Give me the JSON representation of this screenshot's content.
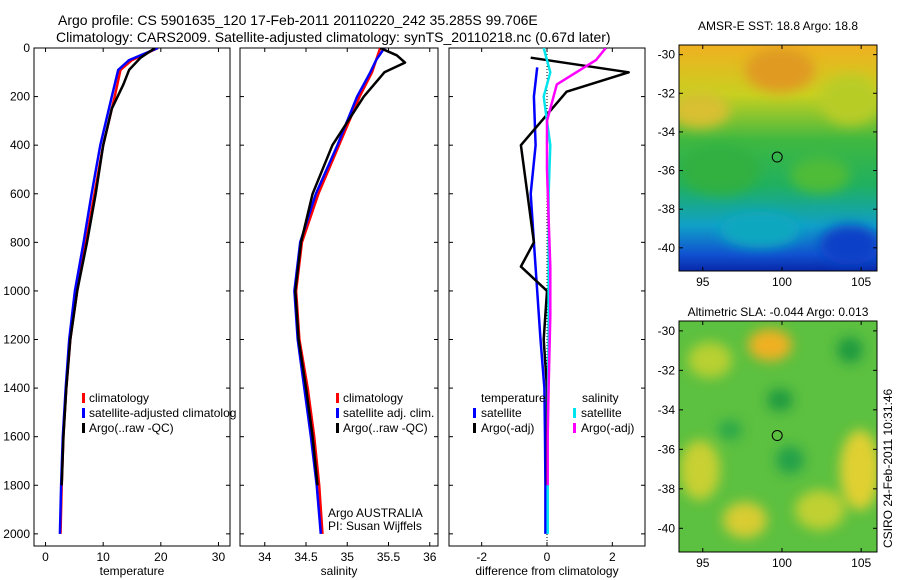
{
  "header": {
    "line1": "Argo profile: CS 5901635_120 17-Feb-2011 20110220_242 35.285S 99.706E",
    "line2": "Climatology: CARS2009. Satellite-adjusted climatology: synTS_20110218.nc (0.67d later)"
  },
  "colors": {
    "climatology": "#ff0000",
    "satellite": "#0000ff",
    "argo": "#000000",
    "sat_sal": "#00e5ee",
    "argo_sal": "#ff00ff"
  },
  "chart_data": [
    {
      "type": "line",
      "id": "temperature",
      "xlabel": "temperature",
      "ylabel": "",
      "xlim": [
        -2,
        32
      ],
      "ylim": [
        2050,
        0
      ],
      "xticks": [
        0,
        10,
        20,
        30
      ],
      "yticks": [
        0,
        200,
        400,
        600,
        800,
        1000,
        1200,
        1400,
        1600,
        1800,
        2000
      ],
      "legend": [
        "climatology",
        "satellite-adjusted climatolog",
        "Argo(..raw -QC)"
      ],
      "series": [
        {
          "name": "climatology",
          "color": "#ff0000",
          "points": [
            [
              19.5,
              0
            ],
            [
              15,
              50
            ],
            [
              13,
              90
            ],
            [
              12,
              200
            ],
            [
              10,
              400
            ],
            [
              8.5,
              600
            ],
            [
              7,
              800
            ],
            [
              5.5,
              1000
            ],
            [
              4.3,
              1200
            ],
            [
              3.6,
              1400
            ],
            [
              3.1,
              1600
            ],
            [
              2.8,
              1800
            ],
            [
              2.6,
              2000
            ]
          ]
        },
        {
          "name": "satellite-adjusted climatolog",
          "color": "#0000ff",
          "points": [
            [
              19.5,
              0
            ],
            [
              14.5,
              50
            ],
            [
              12.6,
              90
            ],
            [
              11.5,
              200
            ],
            [
              9.5,
              400
            ],
            [
              8,
              600
            ],
            [
              6.6,
              800
            ],
            [
              5.1,
              1000
            ],
            [
              4.1,
              1200
            ],
            [
              3.5,
              1400
            ],
            [
              3,
              1600
            ],
            [
              2.7,
              1800
            ],
            [
              2.5,
              2000
            ]
          ]
        },
        {
          "name": "Argo(..raw -QC)",
          "color": "#000000",
          "points": [
            [
              19,
              0
            ],
            [
              16.5,
              40
            ],
            [
              14.5,
              90
            ],
            [
              13.5,
              150
            ],
            [
              11.5,
              250
            ],
            [
              10,
              400
            ],
            [
              8.7,
              600
            ],
            [
              7.2,
              800
            ],
            [
              5.5,
              1000
            ],
            [
              4.3,
              1200
            ],
            [
              3.6,
              1400
            ],
            [
              3.1,
              1600
            ],
            [
              2.8,
              1800
            ]
          ]
        }
      ]
    },
    {
      "type": "line",
      "id": "salinity",
      "xlabel": "salinity",
      "ylabel": "",
      "xlim": [
        33.7,
        36.1
      ],
      "ylim": [
        2050,
        0
      ],
      "xticks": [
        34,
        34.5,
        35,
        35.5,
        36
      ],
      "yticks": [
        0,
        200,
        400,
        600,
        800,
        1000,
        1200,
        1400,
        1600,
        1800,
        2000
      ],
      "legend": [
        "climatology",
        "satellite adj. clim.",
        "Argo(..raw -QC)"
      ],
      "annotation": [
        "Argo AUSTRALIA",
        "PI: Susan Wijffels"
      ],
      "series": [
        {
          "name": "climatology",
          "color": "#ff0000",
          "points": [
            [
              35.4,
              0
            ],
            [
              35.35,
              50
            ],
            [
              35.3,
              100
            ],
            [
              35.15,
              200
            ],
            [
              34.9,
              400
            ],
            [
              34.65,
              600
            ],
            [
              34.45,
              800
            ],
            [
              34.38,
              1000
            ],
            [
              34.42,
              1200
            ],
            [
              34.52,
              1400
            ],
            [
              34.6,
              1600
            ],
            [
              34.66,
              1800
            ],
            [
              34.7,
              2000
            ]
          ]
        },
        {
          "name": "satellite adj. clim.",
          "color": "#0000ff",
          "points": [
            [
              35.45,
              0
            ],
            [
              35.35,
              50
            ],
            [
              35.28,
              100
            ],
            [
              35.12,
              200
            ],
            [
              34.88,
              400
            ],
            [
              34.62,
              600
            ],
            [
              34.43,
              800
            ],
            [
              34.36,
              1000
            ],
            [
              34.4,
              1200
            ],
            [
              34.48,
              1400
            ],
            [
              34.56,
              1600
            ],
            [
              34.63,
              1800
            ],
            [
              34.68,
              2000
            ]
          ]
        },
        {
          "name": "Argo(..raw -QC)",
          "color": "#000000",
          "points": [
            [
              35.4,
              0
            ],
            [
              35.6,
              30
            ],
            [
              35.7,
              60
            ],
            [
              35.45,
              100
            ],
            [
              35.2,
              200
            ],
            [
              34.82,
              400
            ],
            [
              34.58,
              600
            ],
            [
              34.44,
              800
            ],
            [
              34.37,
              1000
            ],
            [
              34.41,
              1200
            ],
            [
              34.5,
              1400
            ],
            [
              34.58,
              1600
            ],
            [
              34.64,
              1800
            ]
          ]
        }
      ]
    },
    {
      "type": "line",
      "id": "difference",
      "xlabel": "difference from climatology",
      "ylabel": "",
      "xlim": [
        -3,
        3
      ],
      "ylim": [
        2050,
        0
      ],
      "xticks": [
        -2,
        0,
        2
      ],
      "yticks": [
        0,
        200,
        400,
        600,
        800,
        1000,
        1200,
        1400,
        1600,
        1800,
        2000
      ],
      "legend_titles": [
        "temperature",
        "salinity"
      ],
      "legend": [
        "satellite",
        "Argo(-adj)",
        "satellite",
        "Argo(-adj)"
      ],
      "series": [
        {
          "name": "temperature satellite",
          "color": "#0000ff",
          "points": [
            [
              -0.3,
              80
            ],
            [
              -0.4,
              200
            ],
            [
              -0.35,
              400
            ],
            [
              -0.5,
              600
            ],
            [
              -0.4,
              800
            ],
            [
              -0.3,
              1000
            ],
            [
              -0.2,
              1200
            ],
            [
              -0.08,
              1400
            ],
            [
              -0.06,
              1600
            ],
            [
              -0.05,
              1800
            ],
            [
              -0.05,
              2000
            ]
          ]
        },
        {
          "name": "temperature Argo(-adj)",
          "color": "#000000",
          "points": [
            [
              -0.5,
              40
            ],
            [
              2.5,
              100
            ],
            [
              0.6,
              180
            ],
            [
              -0.8,
              400
            ],
            [
              -0.6,
              600
            ],
            [
              -0.4,
              800
            ],
            [
              -0.8,
              900
            ],
            [
              0.0,
              1000
            ],
            [
              -0.1,
              1200
            ],
            [
              0.0,
              1400
            ],
            [
              0.0,
              1600
            ],
            [
              0.0,
              1800
            ]
          ]
        },
        {
          "name": "salinity satellite",
          "color": "#00e5ee",
          "points": [
            [
              -0.1,
              0
            ],
            [
              0.1,
              100
            ],
            [
              -0.1,
              200
            ],
            [
              0.1,
              400
            ],
            [
              0.05,
              600
            ],
            [
              0.05,
              800
            ],
            [
              0.05,
              1000
            ],
            [
              0.05,
              1200
            ],
            [
              0.03,
              1400
            ],
            [
              0.02,
              1600
            ],
            [
              0.02,
              1800
            ],
            [
              0.02,
              2000
            ]
          ]
        },
        {
          "name": "salinity Argo(-adj)",
          "color": "#ff00ff",
          "points": [
            [
              1.8,
              0
            ],
            [
              1.5,
              50
            ],
            [
              0.3,
              150
            ],
            [
              0.0,
              300
            ],
            [
              0.0,
              500
            ],
            [
              0.05,
              700
            ],
            [
              0.1,
              900
            ],
            [
              0.1,
              1100
            ],
            [
              0.05,
              1400
            ],
            [
              0.02,
              1600
            ],
            [
              0.02,
              1800
            ]
          ]
        }
      ]
    },
    {
      "type": "heatmap",
      "id": "sst_map",
      "title": "AMSR-E SST: 18.8 Argo: 18.8",
      "xlim": [
        93.5,
        106
      ],
      "ylim": [
        -41.2,
        -29.5
      ],
      "xticks": [
        95,
        100,
        105
      ],
      "yticks": [
        -30,
        -32,
        -34,
        -36,
        -38,
        -40
      ],
      "marker": {
        "lon": 99.7,
        "lat": -35.3
      }
    },
    {
      "type": "heatmap",
      "id": "sla_map",
      "title": "Altimetric SLA: -0.044 Argo: 0.013",
      "xlim": [
        93.5,
        106
      ],
      "ylim": [
        -41.2,
        -29.5
      ],
      "xticks": [
        95,
        100,
        105
      ],
      "yticks": [
        -30,
        -32,
        -34,
        -36,
        -38,
        -40
      ],
      "marker": {
        "lon": 99.7,
        "lat": -35.3
      }
    }
  ],
  "side_caption": "CSIRO 24-Feb-2011 10:31:46"
}
